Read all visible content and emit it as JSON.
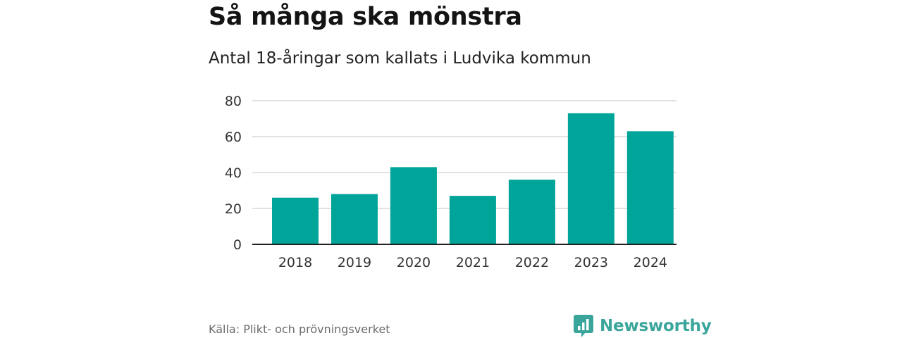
{
  "header": {
    "title": "Så många ska mönstra",
    "subtitle": "Antal 18-åringar som kallats i Ludvika kommun"
  },
  "footer": {
    "source": "Källa: Plikt- och prövningsverket",
    "brand_name": "Newsworthy",
    "brand_icon": "bar-chart-speech-bubble-icon"
  },
  "colors": {
    "bar": "#00a499",
    "brand": "#3aa59b",
    "grid": "#d9d9d9",
    "axis": "#222222"
  },
  "chart_data": {
    "type": "bar",
    "title": "Så många ska mönstra",
    "subtitle": "Antal 18-åringar som kallats i Ludvika kommun",
    "categories": [
      "2018",
      "2019",
      "2020",
      "2021",
      "2022",
      "2023",
      "2024"
    ],
    "values": [
      26,
      28,
      43,
      27,
      36,
      73,
      63
    ],
    "xlabel": "",
    "ylabel": "",
    "ylim": [
      0,
      80
    ],
    "yticks": [
      0,
      20,
      40,
      60,
      80
    ],
    "grid": true,
    "legend": "none"
  }
}
